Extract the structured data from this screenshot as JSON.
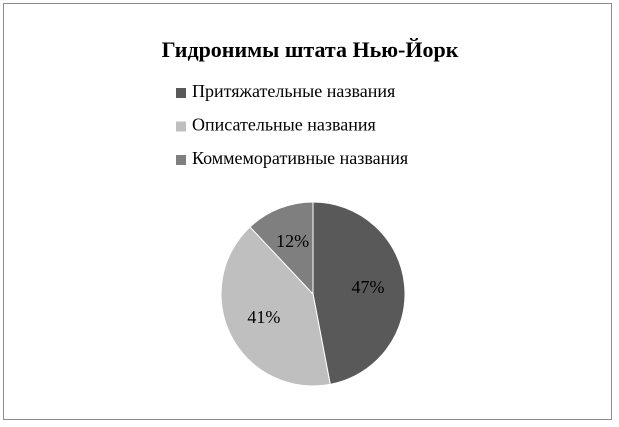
{
  "chart_data": {
    "type": "pie",
    "title": "Гидронимы штата Нью-Йорк",
    "categories": [
      "Притяжательные названия",
      "Описательные названия",
      "Коммеморативные названия"
    ],
    "values": [
      47,
      41,
      12
    ],
    "value_labels": [
      "47%",
      "41%",
      "12%"
    ],
    "colors": [
      "#595959",
      "#bfbfbf",
      "#7f7f7f"
    ]
  }
}
